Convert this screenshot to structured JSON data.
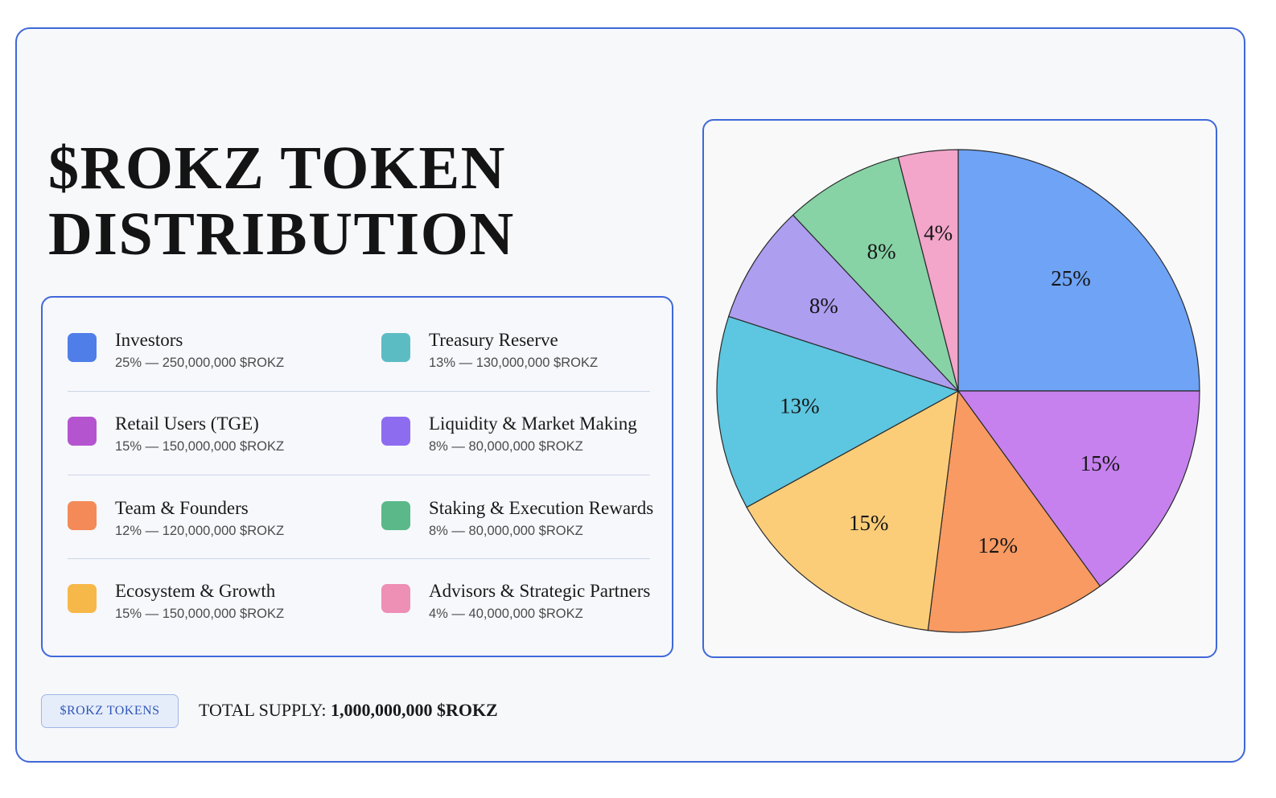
{
  "title_lines": [
    "$ROKZ TOKEN",
    "DISTRIBUTION"
  ],
  "legend": [
    {
      "name": "Investors",
      "detail": "25% — 250,000,000 $ROKZ",
      "color": "#4f7ee8"
    },
    {
      "name": "Treasury Reserve",
      "detail": "13% — 130,000,000 $ROKZ",
      "color": "#5cbcc4"
    },
    {
      "name": "Retail Users (TGE)",
      "detail": "15% — 150,000,000 $ROKZ",
      "color": "#b455cf"
    },
    {
      "name": "Liquidity & Market Making",
      "detail": "8% — 80,000,000 $ROKZ",
      "color": "#8d6cf0"
    },
    {
      "name": "Team & Founders",
      "detail": "12% — 120,000,000 $ROKZ",
      "color": "#f48a58"
    },
    {
      "name": "Staking & Execution Rewards",
      "detail": "8% — 80,000,000 $ROKZ",
      "color": "#5bb889"
    },
    {
      "name": "Ecosystem & Growth",
      "detail": "15% — 150,000,000 $ROKZ",
      "color": "#f7b84a"
    },
    {
      "name": "Advisors & Strategic Partners",
      "detail": "4% — 40,000,000 $ROKZ",
      "color": "#ee8fb6"
    }
  ],
  "chart_data": {
    "type": "pie",
    "start": "12 o'clock, clockwise",
    "slices": [
      {
        "label": "25%",
        "value": 25,
        "color": "#6ea3f5"
      },
      {
        "label": "15%",
        "value": 15,
        "color": "#c681ee"
      },
      {
        "label": "12%",
        "value": 12,
        "color": "#f89a62"
      },
      {
        "label": "15%",
        "value": 15,
        "color": "#fbcd78"
      },
      {
        "label": "13%",
        "value": 13,
        "color": "#5dc6e0"
      },
      {
        "label": "8%",
        "value": 8,
        "color": "#ad9ef0"
      },
      {
        "label": "8%",
        "value": 8,
        "color": "#87d3a6"
      },
      {
        "label": "4%",
        "value": 4,
        "color": "#f3a5ca"
      }
    ]
  },
  "footer": {
    "badge": "$ROKZ TOKENS",
    "supply_label": "TOTAL SUPPLY:",
    "supply_value": "1,000,000,000 $ROKZ"
  }
}
